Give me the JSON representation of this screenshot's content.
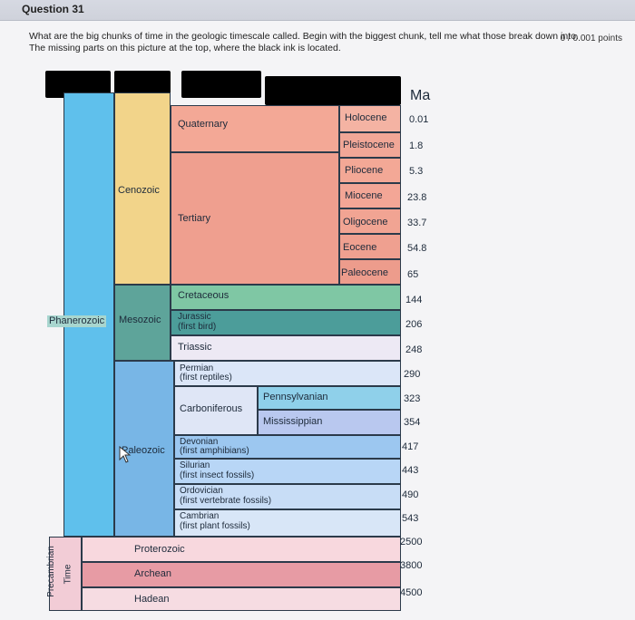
{
  "question": {
    "number_label": "Question 31",
    "points": "0 / 0.001 points",
    "text_line1": "What are the big chunks of time in the geologic timescale called.  Begin with the biggest chunk, tell me what those break down into.",
    "text_line2": "The missing parts on this picture at the top, where the black ink is located."
  },
  "timescale": {
    "ma_header": "Ma",
    "eons": {
      "phanerozoic": "Phanerozoic",
      "precambrian": "Precambrian",
      "precambrian_time": "Time"
    },
    "eras": {
      "cenozoic": "Cenozoic",
      "mesozoic": "Mesozoic",
      "paleozoic": "Paleozoic"
    },
    "periods": {
      "quaternary": "Quaternary",
      "tertiary": "Tertiary",
      "cretaceous": "Cretaceous",
      "jurassic": "Jurassic",
      "jurassic_note": "(first bird)",
      "triassic": "Triassic",
      "permian": "Permian",
      "permian_note": "(first reptiles)",
      "carboniferous": "Carboniferous",
      "pennsylvanian": "Pennsylvanian",
      "mississippian": "Mississippian",
      "devonian": "Devonian",
      "devonian_note": "(first amphibians)",
      "silurian": "Silurian",
      "silurian_note": "(first insect fossils)",
      "ordovician": "Ordovician",
      "ordovician_note": "(first vertebrate fossils)",
      "cambrian": "Cambrian",
      "cambrian_note": "(first plant fossils)"
    },
    "epochs": [
      "Holocene",
      "Pleistocene",
      "Pliocene",
      "Miocene",
      "Oligocene",
      "Eocene",
      "Paleocene"
    ],
    "precambrian_eons": [
      "Proterozoic",
      "Archean",
      "Hadean"
    ],
    "ma_values": [
      "0.01",
      "1.8",
      "5.3",
      "23.8",
      "33.7",
      "54.8",
      "65",
      "144",
      "206",
      "248",
      "290",
      "323",
      "354",
      "417",
      "443",
      "490",
      "543",
      "2500",
      "3800",
      "4500"
    ]
  },
  "colors": {
    "phanerozoic": "#5fc0ec",
    "cenozoic": "#f2d48a",
    "quaternary": "#f3a896",
    "tertiary": "#ef9f8f",
    "mesozoic": "#5ea49a",
    "cretaceous": "#7fc7a4",
    "jurassic": "#4c9d9a",
    "triassic": "#ede9f4",
    "paleozoic": "#78b6e6",
    "precambrian": "#f2ccd6"
  }
}
